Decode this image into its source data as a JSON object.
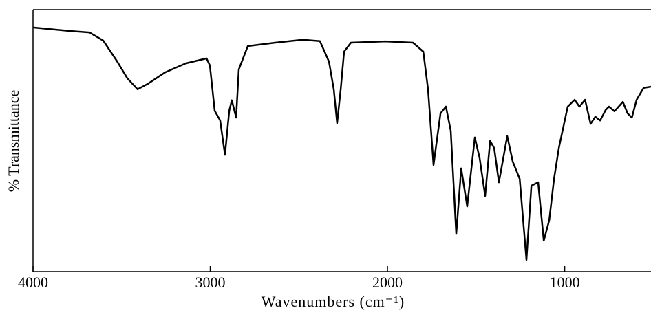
{
  "chart_data": {
    "type": "line",
    "x_label": "Wavenumbers (cm⁻¹)",
    "y_label": "% Transmittance",
    "xlim": [
      4000,
      513
    ],
    "xticks": [
      4000,
      3000,
      2000,
      1000
    ],
    "ylim": [
      0,
      100
    ],
    "series": [
      {
        "color": "#000000",
        "x": [
          4000,
          3798,
          3682,
          3604,
          3526,
          3468,
          3410,
          3352,
          3254,
          3138,
          3021,
          3002,
          2975,
          2944,
          2917,
          2893,
          2878,
          2854,
          2839,
          2788,
          2633,
          2478,
          2381,
          2330,
          2303,
          2284,
          2264,
          2245,
          2206,
          2012,
          1856,
          1798,
          1771,
          1740,
          1701,
          1670,
          1643,
          1612,
          1584,
          1550,
          1507,
          1480,
          1449,
          1421,
          1398,
          1371,
          1324,
          1293,
          1254,
          1216,
          1188,
          1150,
          1118,
          1087,
          1060,
          1033,
          983,
          944,
          917,
          885,
          854,
          827,
          800,
          769,
          750,
          719,
          672,
          645,
          621,
          594,
          555,
          513
        ],
        "values": [
          93.2,
          91.9,
          91.3,
          88.2,
          80.3,
          73.8,
          69.6,
          71.7,
          76.1,
          79.5,
          81.4,
          78.7,
          61.4,
          57.7,
          44.6,
          61.4,
          65.4,
          58.8,
          77.2,
          86.1,
          87.4,
          88.5,
          88.0,
          80.1,
          69.6,
          56.7,
          69.6,
          84.0,
          87.4,
          87.9,
          87.4,
          84.0,
          69.6,
          40.7,
          60.4,
          63.0,
          53.8,
          14.4,
          39.4,
          24.9,
          51.2,
          43.3,
          28.9,
          49.9,
          47.2,
          34.1,
          51.7,
          42.0,
          35.4,
          4.5,
          32.8,
          34.1,
          11.8,
          19.7,
          35.4,
          47.2,
          63.0,
          65.6,
          63.0,
          65.6,
          56.4,
          59.1,
          57.7,
          61.7,
          63.0,
          61.2,
          64.8,
          60.4,
          58.8,
          65.6,
          70.1,
          70.6
        ]
      }
    ]
  }
}
